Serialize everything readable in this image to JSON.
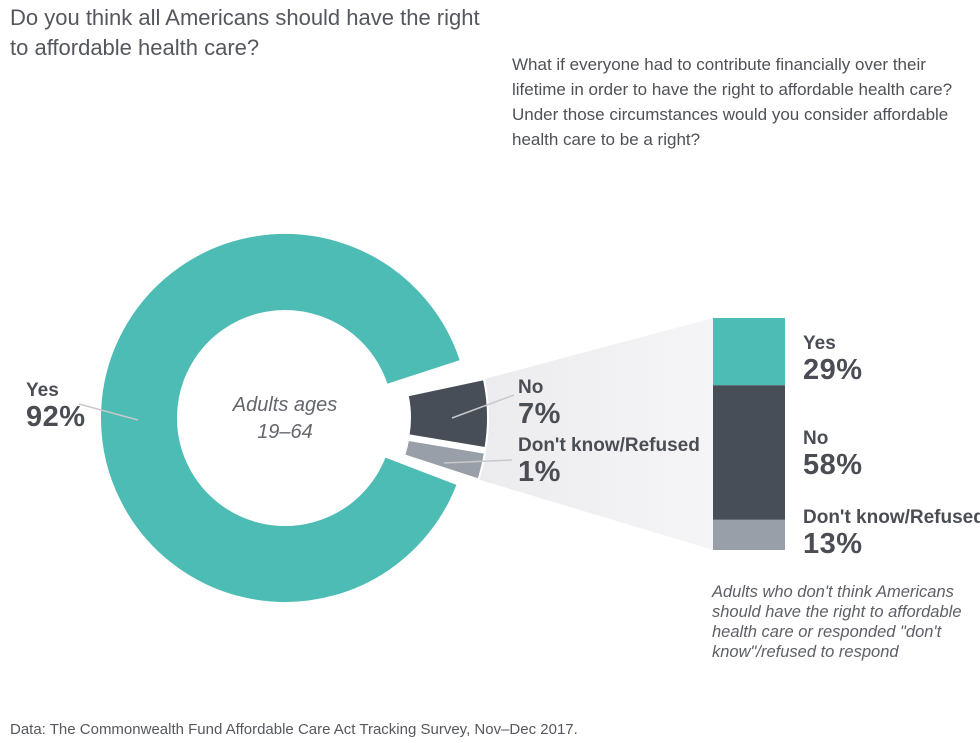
{
  "title": "Do you think all Americans should have the right to affordable health care?",
  "question": "What if everyone had to contribute financially over their lifetime in order to have the right to affordable health care? Under those circumstances would you consider affordable health care to be a right?",
  "footnote": "Adults who don't think Americans should have the right to affordable health care or responded \"don't know\"/refused to respond",
  "source": "Data: The Commonwealth Fund Affordable Care Act Tracking Survey, Nov–Dec 2017.",
  "colors": {
    "yes": "#4dbcb4",
    "no": "#474e57",
    "dont_know": "#999fa8",
    "funnel_left": "#ececef",
    "funnel_right": "#f5f5f7",
    "connector_line": "#c7c9cc",
    "label_text": "#4a4e54"
  },
  "chart_data": {
    "type": "pie",
    "subtype": "donut-with-breakout-stacked-bar",
    "title": "Do you think all Americans should have the right to affordable health care?",
    "donut": {
      "center_label_line1": "Adults ages",
      "center_label_line2": "19–64",
      "segments": [
        {
          "name": "No",
          "value": 7,
          "display": "7%",
          "color": "#474e57",
          "exploded": true
        },
        {
          "name": "Don't know/Refused",
          "value": 1,
          "display": "1%",
          "color": "#999fa8",
          "exploded": true
        },
        {
          "name": "Yes",
          "value": 92,
          "display": "92%",
          "color": "#4dbcb4",
          "exploded": false
        }
      ]
    },
    "breakout_bar": {
      "applies_to": "Adults who answered No or Don't know/Refused",
      "segments": [
        {
          "name": "Yes",
          "value": 29,
          "display": "29%",
          "color": "#4dbcb4"
        },
        {
          "name": "No",
          "value": 58,
          "display": "58%",
          "color": "#474e57"
        },
        {
          "name": "Don't know/Refused",
          "value": 13,
          "display": "13%",
          "color": "#999fa8"
        }
      ]
    }
  }
}
